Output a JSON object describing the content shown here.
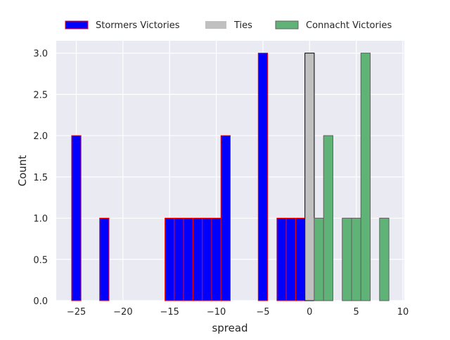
{
  "chart_data": {
    "type": "bar",
    "title": "",
    "xlabel": "spread",
    "ylabel": "Count",
    "xlim": [
      -27.15,
      10.15
    ],
    "ylim": [
      0,
      3.15
    ],
    "xticks": [
      -25,
      -20,
      -15,
      -10,
      -5,
      0,
      5,
      10
    ],
    "xtick_labels": [
      "−25",
      "−20",
      "−15",
      "−10",
      "−5",
      "0",
      "5",
      "10"
    ],
    "yticks": [
      0,
      0.5,
      1,
      1.5,
      2,
      2.5,
      3
    ],
    "ytick_labels": [
      "0.0",
      "0.5",
      "1.0",
      "1.5",
      "2.0",
      "2.5",
      "3.0"
    ],
    "grid": true,
    "bin_width": 1,
    "legend_placement": "top-center, above axes",
    "series": [
      {
        "name": "Stormers Victories",
        "fill": "#0000ff",
        "edge": "#ff0000",
        "bins": [
          -25,
          -22,
          -15,
          -14,
          -13,
          -12,
          -11,
          -10,
          -9,
          -5,
          -3,
          -2,
          -1
        ],
        "values": [
          2,
          1,
          1,
          1,
          1,
          1,
          1,
          1,
          2,
          3,
          1,
          1,
          1
        ]
      },
      {
        "name": "Ties",
        "fill": "#c0c0c0",
        "edge": "#000000",
        "bins": [
          0
        ],
        "values": [
          3
        ]
      },
      {
        "name": "Connacht Victories",
        "fill": "#5fb376",
        "edge": "#606060",
        "bins": [
          1,
          2,
          4,
          5,
          6,
          8
        ],
        "values": [
          1,
          2,
          1,
          1,
          3,
          1
        ]
      }
    ]
  }
}
